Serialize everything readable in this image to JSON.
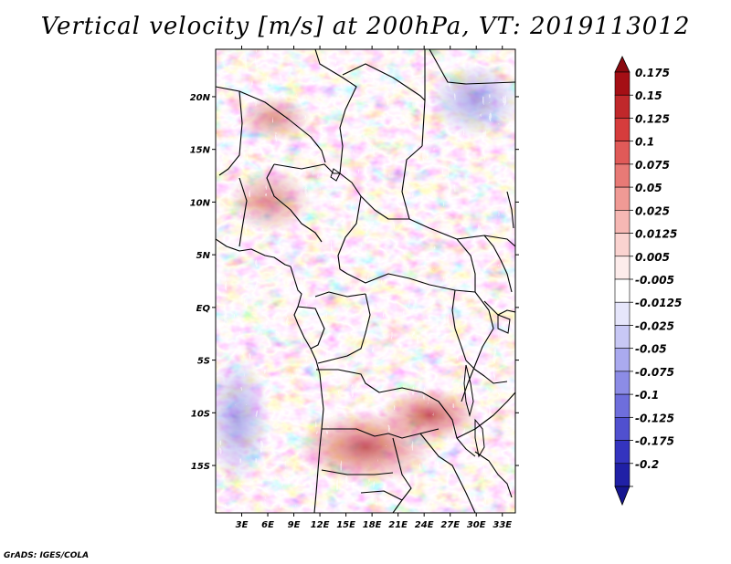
{
  "title": "Vertical velocity [m/s] at 200hPa, VT: 2019113012",
  "credit": "GrADS: IGES/COLA",
  "map": {
    "lon_range": [
      0,
      34.5
    ],
    "lat_range": [
      -19.5,
      24.5
    ],
    "lon_ticks": [
      {
        "value": 3,
        "label": "3E"
      },
      {
        "value": 6,
        "label": "6E"
      },
      {
        "value": 9,
        "label": "9E"
      },
      {
        "value": 12,
        "label": "12E"
      },
      {
        "value": 15,
        "label": "15E"
      },
      {
        "value": 18,
        "label": "18E"
      },
      {
        "value": 21,
        "label": "21E"
      },
      {
        "value": 24,
        "label": "24E"
      },
      {
        "value": 27,
        "label": "27E"
      },
      {
        "value": 30,
        "label": "30E"
      },
      {
        "value": 33,
        "label": "33E"
      }
    ],
    "lat_ticks": [
      {
        "value": 20,
        "label": "20N"
      },
      {
        "value": 15,
        "label": "15N"
      },
      {
        "value": 10,
        "label": "10N"
      },
      {
        "value": 5,
        "label": "5N"
      },
      {
        "value": 0,
        "label": "EQ"
      },
      {
        "value": -5,
        "label": "5S"
      },
      {
        "value": -10,
        "label": "10S"
      },
      {
        "value": -15,
        "label": "15S"
      }
    ]
  },
  "colorbar": {
    "levels": [
      {
        "label": "0.175",
        "color": "#a50f15"
      },
      {
        "label": "0.15",
        "color": "#c0282b"
      },
      {
        "label": "0.125",
        "color": "#d63c3c"
      },
      {
        "label": "0.1",
        "color": "#e05a58"
      },
      {
        "label": "0.075",
        "color": "#e87a76"
      },
      {
        "label": "0.05",
        "color": "#f09a95"
      },
      {
        "label": "0.025",
        "color": "#f6b8b4"
      },
      {
        "label": "0.0125",
        "color": "#fad3d0"
      },
      {
        "label": "0.005",
        "color": "#fdeceb"
      },
      {
        "label": "-0.005",
        "color": "#ffffff"
      },
      {
        "label": "-0.0125",
        "color": "#e6e6fb"
      },
      {
        "label": "-0.025",
        "color": "#c8c8f5"
      },
      {
        "label": "-0.05",
        "color": "#aaaaef"
      },
      {
        "label": "-0.075",
        "color": "#8c8ce6"
      },
      {
        "label": "-0.1",
        "color": "#6e6edc"
      },
      {
        "label": "-0.125",
        "color": "#5050cf"
      },
      {
        "label": "-0.175",
        "color": "#3434bf"
      },
      {
        "label": "-0.2",
        "color": "#2020a6"
      }
    ],
    "over_color": "#8a0a10",
    "under_color": "#161690"
  }
}
